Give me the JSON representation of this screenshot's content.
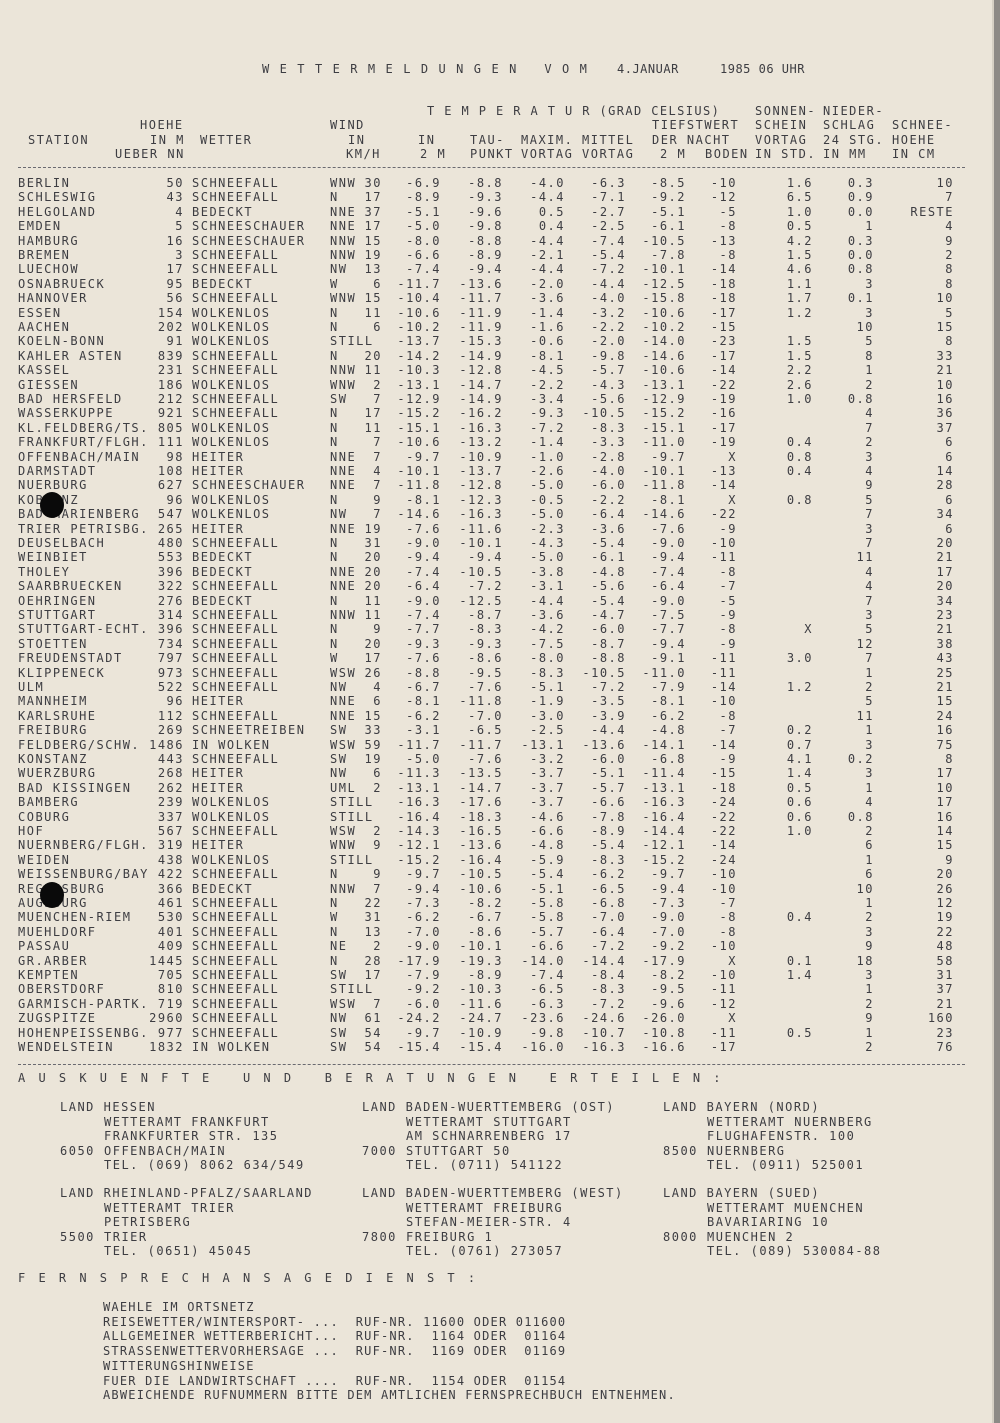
{
  "title": {
    "main": "W E T T E R M E L D U N G E N   V O M",
    "date": "4.JANUAR",
    "time": "1985 06 UHR"
  },
  "header": {
    "temperatur": "T E M P E R A T U R (GRAD CELSIUS)",
    "sonnen": "SONNEN-",
    "nieder": "NIEDER-",
    "hoehe": "HOEHE",
    "wind": "WIND",
    "tiefstwert": "TIEFSTWERT",
    "schein": "SCHEIN",
    "schlag": "SCHLAG",
    "schnee": "SCHNEE-",
    "station": "STATION",
    "in_m": "IN M",
    "wetter": "WETTER",
    "in_wind": "IN",
    "in_2m": "IN",
    "tau": "TAU-",
    "maxim": "MAXIM.",
    "mittel": "MITTEL",
    "der_nacht": "DER NACHT",
    "vortag_sonne": "VORTAG",
    "stg24": "24 STG.",
    "hoehe2": "HOEHE",
    "ueber_nn": "UEBER NN",
    "kmh": "KM/H",
    "m2": "2 M",
    "punkt": "PUNKT",
    "vortag_max": "VORTAG",
    "vortag_mittel": "VORTAG",
    "m2_tief": "2 M",
    "boden": "BODEN",
    "in_std": "IN STD.",
    "in_mm": "IN MM",
    "in_cm": "IN CM"
  },
  "rows": [
    [
      "BERLIN",
      "50",
      "SCHNEEFALL",
      "WNW",
      "30",
      "-6.9",
      "-8.8",
      "-4.0",
      "-6.3",
      "-8.5",
      "-10",
      "1.6",
      "0.3",
      "10"
    ],
    [
      "SCHLESWIG",
      "43",
      "SCHNEEFALL",
      "N",
      "17",
      "-8.9",
      "-9.3",
      "-4.4",
      "-7.1",
      "-9.2",
      "-12",
      "6.5",
      "0.9",
      "7"
    ],
    [
      "HELGOLAND",
      "4",
      "BEDECKT",
      "NNE",
      "37",
      "-5.1",
      "-9.6",
      "0.5",
      "-2.7",
      "-5.1",
      "-5",
      "1.0",
      "0.0",
      "RESTE"
    ],
    [
      "EMDEN",
      "5",
      "SCHNEESCHAUER",
      "NNE",
      "17",
      "-5.0",
      "-9.8",
      "0.4",
      "-2.5",
      "-6.1",
      "-8",
      "0.5",
      "1",
      "4"
    ],
    [
      "HAMBURG",
      "16",
      "SCHNEESCHAUER",
      "NNW",
      "15",
      "-8.0",
      "-8.8",
      "-4.4",
      "-7.4",
      "-10.5",
      "-13",
      "4.2",
      "0.3",
      "9"
    ],
    [
      "BREMEN",
      "3",
      "SCHNEEFALL",
      "NNW",
      "19",
      "-6.6",
      "-8.9",
      "-2.1",
      "-5.4",
      "-7.8",
      "-8",
      "1.5",
      "0.0",
      "2"
    ],
    [
      "LUECHOW",
      "17",
      "SCHNEEFALL",
      "NW",
      "13",
      "-7.4",
      "-9.4",
      "-4.4",
      "-7.2",
      "-10.1",
      "-14",
      "4.6",
      "0.8",
      "8"
    ],
    [
      "OSNABRUECK",
      "95",
      "BEDECKT",
      "W",
      "6",
      "-11.7",
      "-13.6",
      "-2.0",
      "-4.4",
      "-12.5",
      "-18",
      "1.1",
      "3",
      "8"
    ],
    [
      "HANNOVER",
      "56",
      "SCHNEEFALL",
      "WNW",
      "15",
      "-10.4",
      "-11.7",
      "-3.6",
      "-4.0",
      "-15.8",
      "-18",
      "1.7",
      "0.1",
      "10"
    ],
    [
      "ESSEN",
      "154",
      "WOLKENLOS",
      "N",
      "11",
      "-10.6",
      "-11.9",
      "-1.4",
      "-3.2",
      "-10.6",
      "-17",
      "1.2",
      "3",
      "5"
    ],
    [
      "AACHEN",
      "202",
      "WOLKENLOS",
      "N",
      "6",
      "-10.2",
      "-11.9",
      "-1.6",
      "-2.2",
      "-10.2",
      "-15",
      "",
      "10",
      "15"
    ],
    [
      "KOELN-BONN",
      "91",
      "WOLKENLOS",
      "STILL",
      "",
      "-13.7",
      "-15.3",
      "-0.6",
      "-2.0",
      "-14.0",
      "-23",
      "1.5",
      "5",
      "8"
    ],
    [
      "KAHLER ASTEN",
      "839",
      "SCHNEEFALL",
      "N",
      "20",
      "-14.2",
      "-14.9",
      "-8.1",
      "-9.8",
      "-14.6",
      "-17",
      "1.5",
      "8",
      "33"
    ],
    [
      "KASSEL",
      "231",
      "SCHNEEFALL",
      "NNW",
      "11",
      "-10.3",
      "-12.8",
      "-4.5",
      "-5.7",
      "-10.6",
      "-14",
      "2.2",
      "1",
      "21"
    ],
    [
      "GIESSEN",
      "186",
      "WOLKENLOS",
      "WNW",
      "2",
      "-13.1",
      "-14.7",
      "-2.2",
      "-4.3",
      "-13.1",
      "-22",
      "2.6",
      "2",
      "10"
    ],
    [
      "BAD HERSFELD",
      "212",
      "SCHNEEFALL",
      "SW",
      "7",
      "-12.9",
      "-14.9",
      "-3.4",
      "-5.6",
      "-12.9",
      "-19",
      "1.0",
      "0.8",
      "16"
    ],
    [
      "WASSERKUPPE",
      "921",
      "SCHNEEFALL",
      "N",
      "17",
      "-15.2",
      "-16.2",
      "-9.3",
      "-10.5",
      "-15.2",
      "-16",
      "",
      "4",
      "36"
    ],
    [
      "KL.FELDBERG/TS.",
      "805",
      "WOLKENLOS",
      "N",
      "11",
      "-15.1",
      "-16.3",
      "-7.2",
      "-8.3",
      "-15.1",
      "-17",
      "",
      "7",
      "37"
    ],
    [
      "FRANKFURT/FLGH.",
      "111",
      "WOLKENLOS",
      "N",
      "7",
      "-10.6",
      "-13.2",
      "-1.4",
      "-3.3",
      "-11.0",
      "-19",
      "0.4",
      "2",
      "6"
    ],
    [
      "OFFENBACH/MAIN",
      "98",
      "HEITER",
      "NNE",
      "7",
      "-9.7",
      "-10.9",
      "-1.0",
      "-2.8",
      "-9.7",
      "X",
      "0.8",
      "3",
      "6"
    ],
    [
      "DARMSTADT",
      "108",
      "HEITER",
      "NNE",
      "4",
      "-10.1",
      "-13.7",
      "-2.6",
      "-4.0",
      "-10.1",
      "-13",
      "0.4",
      "4",
      "14"
    ],
    [
      "NUERBURG",
      "627",
      "SCHNEESCHAUER",
      "NNE",
      "7",
      "-11.8",
      "-12.8",
      "-5.0",
      "-6.0",
      "-11.8",
      "-14",
      "",
      "9",
      "28"
    ],
    [
      "KOBLENZ",
      "96",
      "WOLKENLOS",
      "N",
      "9",
      "-8.1",
      "-12.3",
      "-0.5",
      "-2.2",
      "-8.1",
      "X",
      "0.8",
      "5",
      "6"
    ],
    [
      "BAD MARIENBERG",
      "547",
      "WOLKENLOS",
      "NW",
      "7",
      "-14.6",
      "-16.3",
      "-5.0",
      "-6.4",
      "-14.6",
      "-22",
      "",
      "7",
      "34"
    ],
    [
      "TRIER PETRISBG.",
      "265",
      "HEITER",
      "NNE",
      "19",
      "-7.6",
      "-11.6",
      "-2.3",
      "-3.6",
      "-7.6",
      "-9",
      "",
      "3",
      "6"
    ],
    [
      "DEUSELBACH",
      "480",
      "SCHNEEFALL",
      "N",
      "31",
      "-9.0",
      "-10.1",
      "-4.3",
      "-5.4",
      "-9.0",
      "-10",
      "",
      "7",
      "20"
    ],
    [
      "WEINBIET",
      "553",
      "BEDECKT",
      "N",
      "20",
      "-9.4",
      "-9.4",
      "-5.0",
      "-6.1",
      "-9.4",
      "-11",
      "",
      "11",
      "21"
    ],
    [
      "THOLEY",
      "396",
      "BEDECKT",
      "NNE",
      "20",
      "-7.4",
      "-10.5",
      "-3.8",
      "-4.8",
      "-7.4",
      "-8",
      "",
      "4",
      "17"
    ],
    [
      "SAARBRUECKEN",
      "322",
      "SCHNEEFALL",
      "NNE",
      "20",
      "-6.4",
      "-7.2",
      "-3.1",
      "-5.6",
      "-6.4",
      "-7",
      "",
      "4",
      "20"
    ],
    [
      "OEHRINGEN",
      "276",
      "BEDECKT",
      "N",
      "11",
      "-9.0",
      "-12.5",
      "-4.4",
      "-5.4",
      "-9.0",
      "-5",
      "",
      "7",
      "34"
    ],
    [
      "STUTTGART",
      "314",
      "SCHNEEFALL",
      "NNW",
      "11",
      "-7.4",
      "-8.7",
      "-3.6",
      "-4.7",
      "-7.5",
      "-9",
      "",
      "3",
      "23"
    ],
    [
      "STUTTGART-ECHT.",
      "396",
      "SCHNEEFALL",
      "N",
      "9",
      "-7.7",
      "-8.3",
      "-4.2",
      "-6.0",
      "-7.7",
      "-8",
      "X",
      "5",
      "21"
    ],
    [
      "STOETTEN",
      "734",
      "SCHNEEFALL",
      "N",
      "20",
      "-9.3",
      "-9.3",
      "-7.5",
      "-8.7",
      "-9.4",
      "-9",
      "",
      "12",
      "38"
    ],
    [
      "FREUDENSTADT",
      "797",
      "SCHNEEFALL",
      "W",
      "17",
      "-7.6",
      "-8.6",
      "-8.0",
      "-8.8",
      "-9.1",
      "-11",
      "3.0",
      "7",
      "43"
    ],
    [
      "KLIPPENECK",
      "973",
      "SCHNEEFALL",
      "WSW",
      "26",
      "-8.8",
      "-9.5",
      "-8.3",
      "-10.5",
      "-11.0",
      "-11",
      "",
      "1",
      "25"
    ],
    [
      "ULM",
      "522",
      "SCHNEEFALL",
      "NW",
      "4",
      "-6.7",
      "-7.6",
      "-5.1",
      "-7.2",
      "-7.9",
      "-14",
      "1.2",
      "2",
      "21"
    ],
    [
      "MANNHEIM",
      "96",
      "HEITER",
      "NNE",
      "6",
      "-8.1",
      "-11.8",
      "-1.9",
      "-3.5",
      "-8.1",
      "-10",
      "",
      "5",
      "15"
    ],
    [
      "KARLSRUHE",
      "112",
      "SCHNEEFALL",
      "NNE",
      "15",
      "-6.2",
      "-7.0",
      "-3.0",
      "-3.9",
      "-6.2",
      "-8",
      "",
      "11",
      "24"
    ],
    [
      "FREIBURG",
      "269",
      "SCHNEETREIBEN",
      "SW",
      "33",
      "-3.1",
      "-6.5",
      "-2.5",
      "-4.4",
      "-4.8",
      "-7",
      "0.2",
      "1",
      "16"
    ],
    [
      "FELDBERG/SCHW.",
      "1486",
      "IN WOLKEN",
      "WSW",
      "59",
      "-11.7",
      "-11.7",
      "-13.1",
      "-13.6",
      "-14.1",
      "-14",
      "0.7",
      "3",
      "75"
    ],
    [
      "KONSTANZ",
      "443",
      "SCHNEEFALL",
      "SW",
      "19",
      "-5.0",
      "-7.6",
      "-3.2",
      "-6.0",
      "-6.8",
      "-9",
      "4.1",
      "0.2",
      "8"
    ],
    [
      "WUERZBURG",
      "268",
      "HEITER",
      "NW",
      "6",
      "-11.3",
      "-13.5",
      "-3.7",
      "-5.1",
      "-11.4",
      "-15",
      "1.4",
      "3",
      "17"
    ],
    [
      "BAD KISSINGEN",
      "262",
      "HEITER",
      "UML",
      "2",
      "-13.1",
      "-14.7",
      "-3.7",
      "-5.7",
      "-13.1",
      "-18",
      "0.5",
      "1",
      "10"
    ],
    [
      "BAMBERG",
      "239",
      "WOLKENLOS",
      "STILL",
      "",
      "-16.3",
      "-17.6",
      "-3.7",
      "-6.6",
      "-16.3",
      "-24",
      "0.6",
      "4",
      "17"
    ],
    [
      "COBURG",
      "337",
      "WOLKENLOS",
      "STILL",
      "",
      "-16.4",
      "-18.3",
      "-4.6",
      "-7.8",
      "-16.4",
      "-22",
      "0.6",
      "0.8",
      "16"
    ],
    [
      "HOF",
      "567",
      "SCHNEEFALL",
      "WSW",
      "2",
      "-14.3",
      "-16.5",
      "-6.6",
      "-8.9",
      "-14.4",
      "-22",
      "1.0",
      "2",
      "14"
    ],
    [
      "NUERNBERG/FLGH.",
      "319",
      "HEITER",
      "WNW",
      "9",
      "-12.1",
      "-13.6",
      "-4.8",
      "-5.4",
      "-12.1",
      "-14",
      "",
      "6",
      "15"
    ],
    [
      "WEIDEN",
      "438",
      "WOLKENLOS",
      "STILL",
      "",
      "-15.2",
      "-16.4",
      "-5.9",
      "-8.3",
      "-15.2",
      "-24",
      "",
      "1",
      "9"
    ],
    [
      "WEISSENBURG/BAY",
      "422",
      "SCHNEEFALL",
      "N",
      "9",
      "-9.7",
      "-10.5",
      "-5.4",
      "-6.2",
      "-9.7",
      "-10",
      "",
      "6",
      "20"
    ],
    [
      "REGENSBURG",
      "366",
      "BEDECKT",
      "NNW",
      "7",
      "-9.4",
      "-10.6",
      "-5.1",
      "-6.5",
      "-9.4",
      "-10",
      "",
      "10",
      "26"
    ],
    [
      "AUGSBURG",
      "461",
      "SCHNEEFALL",
      "N",
      "22",
      "-7.3",
      "-8.2",
      "-5.8",
      "-6.8",
      "-7.3",
      "-7",
      "",
      "1",
      "12"
    ],
    [
      "MUENCHEN-RIEM",
      "530",
      "SCHNEEFALL",
      "W",
      "31",
      "-6.2",
      "-6.7",
      "-5.8",
      "-7.0",
      "-9.0",
      "-8",
      "0.4",
      "2",
      "19"
    ],
    [
      "MUEHLDORF",
      "401",
      "SCHNEEFALL",
      "N",
      "13",
      "-7.0",
      "-8.6",
      "-5.7",
      "-6.4",
      "-7.0",
      "-8",
      "",
      "3",
      "22"
    ],
    [
      "PASSAU",
      "409",
      "SCHNEEFALL",
      "NE",
      "2",
      "-9.0",
      "-10.1",
      "-6.6",
      "-7.2",
      "-9.2",
      "-10",
      "",
      "9",
      "48"
    ],
    [
      "GR.ARBER",
      "1445",
      "SCHNEEFALL",
      "N",
      "28",
      "-17.9",
      "-19.3",
      "-14.0",
      "-14.4",
      "-17.9",
      "X",
      "0.1",
      "18",
      "58"
    ],
    [
      "KEMPTEN",
      "705",
      "SCHNEEFALL",
      "SW",
      "17",
      "-7.9",
      "-8.9",
      "-7.4",
      "-8.4",
      "-8.2",
      "-10",
      "1.4",
      "3",
      "31"
    ],
    [
      "OBERSTDORF",
      "810",
      "SCHNEEFALL",
      "STILL",
      "",
      "-9.2",
      "-10.3",
      "-6.5",
      "-8.3",
      "-9.5",
      "-11",
      "",
      "1",
      "37"
    ],
    [
      "GARMISCH-PARTK.",
      "719",
      "SCHNEEFALL",
      "WSW",
      "7",
      "-6.0",
      "-11.6",
      "-6.3",
      "-7.2",
      "-9.6",
      "-12",
      "",
      "2",
      "21"
    ],
    [
      "ZUGSPITZE",
      "2960",
      "SCHNEEFALL",
      "NW",
      "61",
      "-24.2",
      "-24.7",
      "-23.6",
      "-24.6",
      "-26.0",
      "X",
      "",
      "9",
      "160"
    ],
    [
      "HOHENPEISSENBG.",
      "977",
      "SCHNEEFALL",
      "SW",
      "54",
      "-9.7",
      "-10.9",
      "-9.8",
      "-10.7",
      "-10.8",
      "-11",
      "0.5",
      "1",
      "23"
    ],
    [
      "WENDELSTEIN",
      "1832",
      "IN WOLKEN",
      "SW",
      "54",
      "-15.4",
      "-15.4",
      "-16.0",
      "-16.3",
      "-16.6",
      "-17",
      "",
      "2",
      "76"
    ]
  ],
  "auskunft": {
    "heading": "A U S K U E N F T E   U N D   B E R A T U N G E N   E R T E I L E N :",
    "contacts": [
      {
        "land": "LAND HESSEN",
        "amt": "WETTERAMT FRANKFURT",
        "street": "FRANKFURTER STR. 135",
        "plz": "6050",
        "city": "OFFENBACH/MAIN",
        "tel": "TEL. (069) 8062 634/549"
      },
      {
        "land": "LAND BADEN-WUERTTEMBERG (OST)",
        "amt": "WETTERAMT STUTTGART",
        "street": "AM SCHNARRENBERG 17",
        "plz": "7000",
        "city": "STUTTGART 50",
        "tel": "TEL. (0711) 541122"
      },
      {
        "land": "LAND BAYERN (NORD)",
        "amt": "WETTERAMT NUERNBERG",
        "street": "FLUGHAFENSTR. 100",
        "plz": "8500",
        "city": "NUERNBERG",
        "tel": "TEL. (0911) 525001"
      },
      {
        "land": "LAND RHEINLAND-PFALZ/SAARLAND",
        "amt": "WETTERAMT TRIER",
        "street": "PETRISBERG",
        "plz": "5500",
        "city": "TRIER",
        "tel": "TEL. (0651) 45045"
      },
      {
        "land": "LAND BADEN-WUERTTEMBERG (WEST)",
        "amt": "WETTERAMT FREIBURG",
        "street": "STEFAN-MEIER-STR. 4",
        "plz": "7800",
        "city": "FREIBURG 1",
        "tel": "TEL. (0761) 273057"
      },
      {
        "land": "LAND BAYERN (SUED)",
        "amt": "WETTERAMT MUENCHEN",
        "street": "BAVARIARING 10",
        "plz": "8000",
        "city": "MUENCHEN 2",
        "tel": "TEL. (089) 530084-88"
      }
    ]
  },
  "fernsprech": {
    "heading": "F E R N S P R E C H A N S A G E D I E N S T :",
    "lines": [
      "WAEHLE IM ORTSNETZ",
      "REISEWETTER/WINTERSPORT- ...  RUF-NR. 11600 ODER 011600",
      "ALLGEMEINER WETTERBERICHT...  RUF-NR.  1164 ODER  01164",
      "STRASSENWETTERVORHERSAGE ...  RUF-NR.  1169 ODER  01169",
      "WITTERUNGSHINWEISE",
      "FUER DIE LANDWIRTSCHAFT ....  RUF-NR.  1154 ODER  01154",
      "ABWEICHENDE RUFNUMMERN BITTE DEM AMTLICHEN FERNSPRECHBUCH ENTNEHMEN."
    ]
  },
  "colors": {
    "paper": "#ebe5d9",
    "ink": "#3d3d42"
  }
}
